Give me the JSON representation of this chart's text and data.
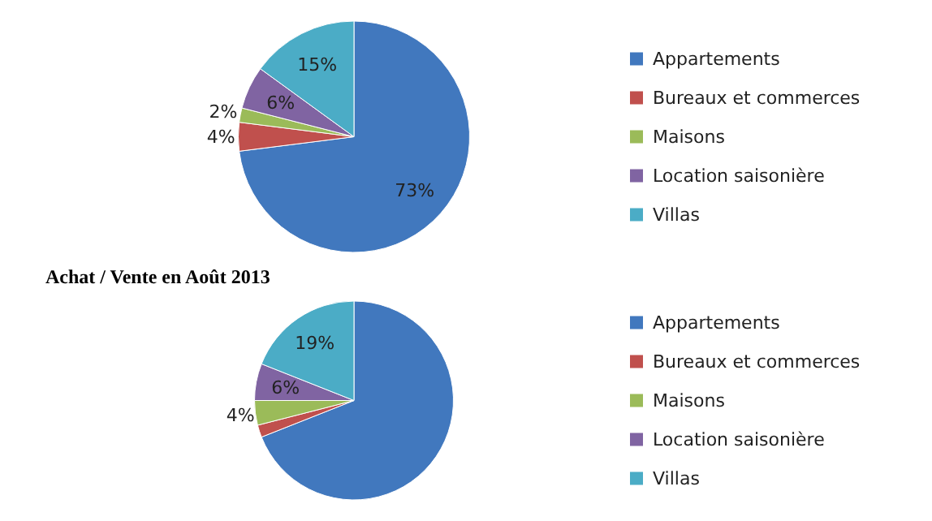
{
  "chart_data": [
    {
      "type": "pie",
      "categories": [
        "Appartements",
        "Bureaux et commerces",
        "Maisons",
        "Location saisonière",
        "Villas"
      ],
      "values": [
        73,
        4,
        2,
        6,
        15
      ],
      "colors": [
        "#4178be",
        "#c0504d",
        "#9bbb59",
        "#8064a2",
        "#4bacc6"
      ],
      "value_labels": [
        "73%",
        "4%",
        "2%",
        "6%",
        "15%"
      ],
      "legend": "right"
    },
    {
      "type": "pie",
      "title": "Achat / Vente en Août 2013",
      "categories": [
        "Appartements",
        "Bureaux et commerces",
        "Maisons",
        "Location saisonière",
        "Villas"
      ],
      "values": [
        69,
        2,
        4,
        6,
        19
      ],
      "colors": [
        "#4178be",
        "#c0504d",
        "#9bbb59",
        "#8064a2",
        "#4bacc6"
      ],
      "value_labels": [
        null,
        null,
        "4%",
        "6%",
        "19%"
      ],
      "legend": "right"
    }
  ]
}
